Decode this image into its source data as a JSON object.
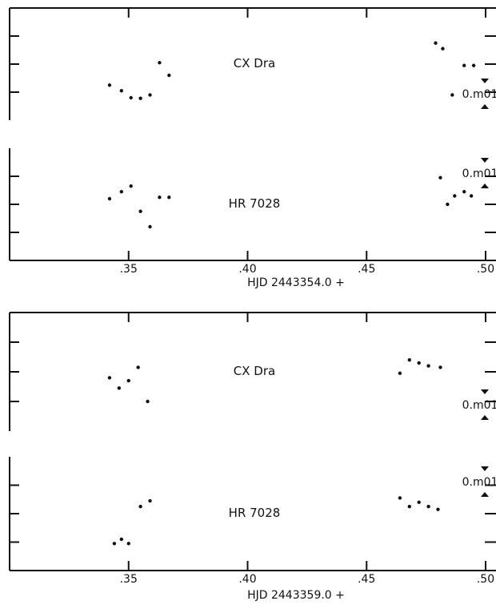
{
  "chart_data": [
    {
      "type": "scatter",
      "panel": "top",
      "xlabel": "HJD 2443354.0 +",
      "xlim": [
        0.3,
        0.505
      ],
      "x_ticks": [
        0.3,
        0.35,
        0.4,
        0.45,
        0.5
      ],
      "x_tick_labels": [
        "",
        ".35",
        ".40",
        ".45",
        ".50"
      ],
      "grid": false,
      "scale_bar_label": "0.m01",
      "series": [
        {
          "name": "CX Dra",
          "ylim": [
            0,
            4
          ],
          "points": [
            [
              0.342,
              1.25
            ],
            [
              0.347,
              1.05
            ],
            [
              0.351,
              0.8
            ],
            [
              0.355,
              0.78
            ],
            [
              0.359,
              0.9
            ],
            [
              0.363,
              2.05
            ],
            [
              0.367,
              1.6
            ],
            [
              0.479,
              2.75
            ],
            [
              0.482,
              2.55
            ],
            [
              0.486,
              0.9
            ],
            [
              0.491,
              1.95
            ],
            [
              0.495,
              1.95
            ]
          ]
        },
        {
          "name": "HR 7028",
          "ylim": [
            0,
            4
          ],
          "points": [
            [
              0.342,
              2.2
            ],
            [
              0.347,
              2.45
            ],
            [
              0.351,
              2.65
            ],
            [
              0.355,
              1.75
            ],
            [
              0.359,
              1.2
            ],
            [
              0.363,
              2.25
            ],
            [
              0.367,
              2.25
            ],
            [
              0.481,
              2.95
            ],
            [
              0.484,
              2.0
            ],
            [
              0.487,
              2.3
            ],
            [
              0.491,
              2.45
            ],
            [
              0.494,
              2.3
            ]
          ]
        }
      ]
    },
    {
      "type": "scatter",
      "panel": "bottom",
      "xlabel": "HJD 2443359.0 +",
      "xlim": [
        0.3,
        0.505
      ],
      "x_ticks": [
        0.3,
        0.35,
        0.4,
        0.45,
        0.5
      ],
      "x_tick_labels": [
        "",
        ".35",
        ".40",
        ".45",
        ".50"
      ],
      "grid": false,
      "scale_bar_label": "0.m01",
      "series": [
        {
          "name": "CX Dra",
          "ylim": [
            0,
            4
          ],
          "points": [
            [
              0.342,
              1.8
            ],
            [
              0.346,
              1.45
            ],
            [
              0.35,
              1.7
            ],
            [
              0.354,
              2.15
            ],
            [
              0.358,
              1.0
            ],
            [
              0.464,
              1.95
            ],
            [
              0.468,
              2.4
            ],
            [
              0.472,
              2.3
            ],
            [
              0.476,
              2.2
            ],
            [
              0.481,
              2.15
            ]
          ]
        },
        {
          "name": "HR 7028",
          "ylim": [
            0,
            4
          ],
          "points": [
            [
              0.344,
              0.95
            ],
            [
              0.347,
              1.1
            ],
            [
              0.35,
              0.95
            ],
            [
              0.355,
              2.25
            ],
            [
              0.359,
              2.45
            ],
            [
              0.464,
              2.55
            ],
            [
              0.468,
              2.25
            ],
            [
              0.472,
              2.4
            ],
            [
              0.476,
              2.25
            ],
            [
              0.48,
              2.15
            ]
          ]
        }
      ]
    }
  ]
}
